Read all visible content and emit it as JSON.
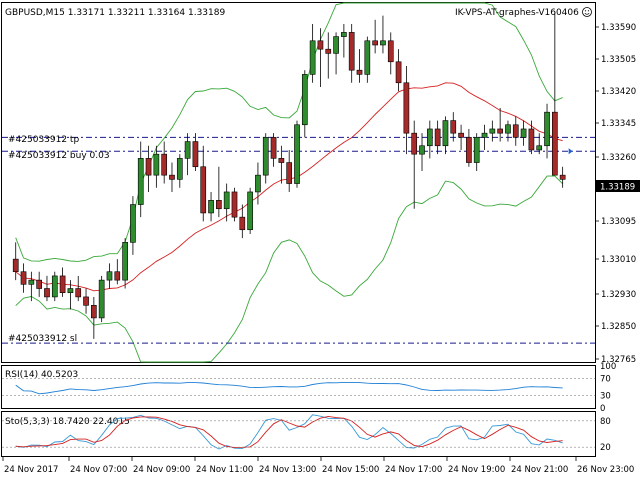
{
  "header": {
    "symbol_info": "GBPUSD,M15  1.33171 1.33211 1.33164 1.33189",
    "indicator_name": "IK-VPS-AT-graphes-V160406"
  },
  "trade_lines": {
    "tp_label": "#425033912 tp",
    "buy_label": "#425033912 buy 0.03",
    "sl_label": "#425033912 sl",
    "tp_price": 1.3329,
    "buy_price": 1.33257,
    "sl_price": 1.328
  },
  "price_axis": {
    "ticks": [
      "1.33590",
      "1.33505",
      "1.33420",
      "1.33345",
      "1.33260",
      "1.33095",
      "1.33010",
      "1.32930",
      "1.32850",
      "1.32765"
    ],
    "current_price": "1.33189"
  },
  "rsi_panel": {
    "label": "RSI(14) 40.5203",
    "ticks": [
      "100",
      "70",
      "30",
      "0"
    ]
  },
  "stoch_panel": {
    "label": "Sto(5,3,3) 18.7420 22.4015",
    "ticks": [
      "80",
      "20"
    ]
  },
  "time_axis": {
    "labels": [
      "24 Nov 2017",
      "24 Nov 07:00",
      "24 Nov 09:00",
      "24 Nov 11:00",
      "24 Nov 13:00",
      "24 Nov 15:00",
      "24 Nov 17:00",
      "24 Nov 19:00",
      "24 Nov 21:00",
      "26 Nov 23:00"
    ]
  },
  "colors": {
    "bull": "#2e8b2e",
    "bear": "#a52a2a",
    "bands": "#3aa83a",
    "ma": "#d62020",
    "trade_line": "#1a1a8c",
    "rsi": "#1e7fd6",
    "stoch_main": "#3a9ad6",
    "stoch_signal": "#d62020",
    "grid": "#000000"
  },
  "chart_data": {
    "type": "candlestick",
    "candles": [
      [
        1.33,
        1.3304,
        1.3295,
        1.3297
      ],
      [
        1.3297,
        1.3299,
        1.3292,
        1.3294
      ],
      [
        1.3294,
        1.3297,
        1.329,
        1.3295
      ],
      [
        1.3295,
        1.3297,
        1.3291,
        1.3293
      ],
      [
        1.3293,
        1.3296,
        1.329,
        1.3291
      ],
      [
        1.3291,
        1.3297,
        1.329,
        1.3296
      ],
      [
        1.3296,
        1.3298,
        1.3291,
        1.3292
      ],
      [
        1.3292,
        1.3295,
        1.3288,
        1.3293
      ],
      [
        1.3293,
        1.3296,
        1.329,
        1.3291
      ],
      [
        1.3291,
        1.3293,
        1.3287,
        1.3289
      ],
      [
        1.3289,
        1.3291,
        1.3281,
        1.3286
      ],
      [
        1.3286,
        1.3296,
        1.3285,
        1.3295
      ],
      [
        1.3295,
        1.3299,
        1.3293,
        1.3297
      ],
      [
        1.3297,
        1.33,
        1.3294,
        1.3295
      ],
      [
        1.3295,
        1.3305,
        1.3293,
        1.3304
      ],
      [
        1.3304,
        1.3315,
        1.3301,
        1.3313
      ],
      [
        1.3313,
        1.3328,
        1.331,
        1.3324
      ],
      [
        1.3324,
        1.3327,
        1.3316,
        1.332
      ],
      [
        1.332,
        1.3327,
        1.3317,
        1.3325
      ],
      [
        1.3325,
        1.3328,
        1.3318,
        1.332
      ],
      [
        1.332,
        1.3323,
        1.3316,
        1.3319
      ],
      [
        1.3319,
        1.3325,
        1.3317,
        1.3324
      ],
      [
        1.3324,
        1.333,
        1.332,
        1.3328
      ],
      [
        1.3328,
        1.333,
        1.3321,
        1.3322
      ],
      [
        1.3322,
        1.3327,
        1.3309,
        1.3311
      ],
      [
        1.3311,
        1.3316,
        1.3309,
        1.3314
      ],
      [
        1.3314,
        1.3322,
        1.331,
        1.3312
      ],
      [
        1.3312,
        1.3318,
        1.3309,
        1.3316
      ],
      [
        1.3316,
        1.3317,
        1.3309,
        1.331
      ],
      [
        1.331,
        1.3313,
        1.3305,
        1.3307
      ],
      [
        1.3307,
        1.3317,
        1.3306,
        1.3316
      ],
      [
        1.3316,
        1.3323,
        1.3313,
        1.332
      ],
      [
        1.332,
        1.333,
        1.3318,
        1.3329
      ],
      [
        1.3329,
        1.333,
        1.3322,
        1.3324
      ],
      [
        1.3324,
        1.3327,
        1.3318,
        1.3323
      ],
      [
        1.3323,
        1.3326,
        1.3316,
        1.3318
      ],
      [
        1.3318,
        1.3333,
        1.3317,
        1.3332
      ],
      [
        1.3332,
        1.3345,
        1.3329,
        1.3344
      ],
      [
        1.3344,
        1.3356,
        1.3342,
        1.3352
      ],
      [
        1.3352,
        1.3355,
        1.3341,
        1.335
      ],
      [
        1.335,
        1.3354,
        1.3343,
        1.3349
      ],
      [
        1.3349,
        1.3354,
        1.3344,
        1.3353
      ],
      [
        1.3353,
        1.3356,
        1.3348,
        1.3354
      ],
      [
        1.3354,
        1.3356,
        1.3342,
        1.3345
      ],
      [
        1.3345,
        1.335,
        1.3342,
        1.3344
      ],
      [
        1.3344,
        1.3353,
        1.3342,
        1.3352
      ],
      [
        1.3352,
        1.3357,
        1.3349,
        1.3351
      ],
      [
        1.3351,
        1.3358,
        1.3349,
        1.3352
      ],
      [
        1.3352,
        1.3354,
        1.3344,
        1.3347
      ],
      [
        1.3347,
        1.335,
        1.334,
        1.3342
      ],
      [
        1.3342,
        1.3346,
        1.3325,
        1.333
      ],
      [
        1.333,
        1.3333,
        1.3312,
        1.3325
      ],
      [
        1.3325,
        1.333,
        1.3321,
        1.3327
      ],
      [
        1.3327,
        1.3333,
        1.3324,
        1.3331
      ],
      [
        1.3331,
        1.3333,
        1.3325,
        1.3327
      ],
      [
        1.3327,
        1.3334,
        1.3325,
        1.3333
      ],
      [
        1.3333,
        1.3335,
        1.3328,
        1.333
      ],
      [
        1.333,
        1.3332,
        1.3326,
        1.3329
      ],
      [
        1.3329,
        1.3331,
        1.3322,
        1.3323
      ],
      [
        1.3323,
        1.333,
        1.3321,
        1.3329
      ],
      [
        1.3329,
        1.3332,
        1.3326,
        1.333
      ],
      [
        1.333,
        1.3333,
        1.3328,
        1.3331
      ],
      [
        1.3331,
        1.3336,
        1.3328,
        1.333
      ],
      [
        1.333,
        1.3333,
        1.3328,
        1.3332
      ],
      [
        1.3332,
        1.3334,
        1.3327,
        1.3329
      ],
      [
        1.3329,
        1.3333,
        1.3327,
        1.3331
      ],
      [
        1.3331,
        1.3333,
        1.3325,
        1.3326
      ],
      [
        1.3326,
        1.333,
        1.3325,
        1.3327
      ],
      [
        1.3327,
        1.3337,
        1.3324,
        1.3335
      ],
      [
        1.3335,
        1.3359,
        1.332,
        1.332
      ],
      [
        1.332,
        1.3322,
        1.3317,
        1.3319
      ]
    ],
    "y_range": [
      1.32755,
      1.3361
    ]
  }
}
